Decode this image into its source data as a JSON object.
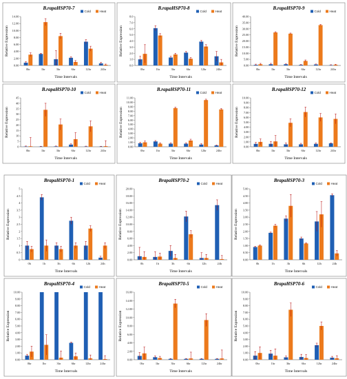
{
  "figure": {
    "colors": {
      "cold": "#1f5fb4",
      "heat": "#ec7a1c",
      "error": "#b30000"
    }
  },
  "chart_data": [
    {
      "type": "bar",
      "title": "B.rapaHSP70-7",
      "categories": [
        "0hr",
        "1hr",
        "3hr",
        "6hr",
        "12hr",
        "24hr"
      ],
      "series": [
        {
          "name": "Cold",
          "values": [
            0.8,
            3.3,
            1.8,
            2.2,
            6.8,
            0.6
          ]
        },
        {
          "name": "Heat",
          "values": [
            3.1,
            12.4,
            8.4,
            1.0,
            4.8,
            0.2
          ]
        }
      ],
      "ylim": [
        0,
        14
      ],
      "yticks": [
        "0.00",
        "2.00",
        "4.00",
        "6.00",
        "8.00",
        "10.00",
        "12.00",
        "14.00"
      ],
      "xlabel": "Time Intervals",
      "ylabel": "Relative Expression",
      "legend": "top-right",
      "grid": false
    },
    {
      "type": "bar",
      "title": "B.rapaHSP70-8",
      "categories": [
        "0hr",
        "1hr",
        "3hr",
        "6hr",
        "12hr",
        "24hr"
      ],
      "series": [
        {
          "name": "Cold",
          "values": [
            1.0,
            6.1,
            1.3,
            2.1,
            3.9,
            1.5
          ]
        },
        {
          "name": "Heat",
          "values": [
            1.9,
            4.9,
            1.8,
            1.1,
            3.1,
            0.5
          ]
        }
      ],
      "ylim": [
        0,
        8
      ],
      "yticks": [
        "0.0",
        "1.0",
        "2.0",
        "3.0",
        "4.0",
        "5.0",
        "6.0",
        "7.0",
        "8.0"
      ],
      "xlabel": "Time Intervals",
      "ylabel": "Relative Expression",
      "legend": "top-right",
      "grid": false
    },
    {
      "type": "bar",
      "title": "B.rapaHSP70-9",
      "categories": [
        "0hr",
        "1hr",
        "3hr",
        "6hr",
        "12hr",
        "24hr"
      ],
      "series": [
        {
          "name": "Cold",
          "values": [
            0.5,
            1.0,
            1.0,
            0.5,
            0.8,
            0.3
          ]
        },
        {
          "name": "Heat",
          "values": [
            1.0,
            27.0,
            26.0,
            3.7,
            33.0,
            0.6
          ]
        }
      ],
      "ylim": [
        0,
        40
      ],
      "yticks": [
        "0.00",
        "5.00",
        "10.00",
        "15.00",
        "20.00",
        "25.00",
        "30.00",
        "35.00",
        "40.00"
      ],
      "xlabel": "Time Intervals",
      "ylabel": "Relative Expression",
      "legend": "top-right",
      "grid": false
    },
    {
      "type": "bar",
      "title": "B.rapaHSP70-10",
      "categories": [
        "0hr",
        "1hr",
        "3hr",
        "6hr",
        "12hr",
        "24hr"
      ],
      "series": [
        {
          "name": "Cold",
          "values": [
            0.3,
            0.2,
            0.4,
            2.0,
            0.3,
            0.2
          ]
        },
        {
          "name": "Heat",
          "values": [
            0.5,
            34.0,
            20.5,
            7.0,
            18.8,
            0.6
          ]
        }
      ],
      "ylim": [
        0,
        45
      ],
      "yticks": [
        "0",
        "5",
        "10",
        "15",
        "20",
        "25",
        "30",
        "35",
        "40",
        "45"
      ],
      "xlabel": "Time Intervals",
      "ylabel": "Relative Expression",
      "legend": "top-right",
      "grid": false
    },
    {
      "type": "bar",
      "title": "B.rapaHSP70-11",
      "categories": [
        "0hr",
        "1hr",
        "3hr",
        "6hr",
        "12hr",
        "24hr"
      ],
      "series": [
        {
          "name": "Cold",
          "values": [
            0.8,
            1.2,
            0.7,
            0.7,
            0.5,
            0.3
          ]
        },
        {
          "name": "Heat",
          "values": [
            1.0,
            0.7,
            8.7,
            1.4,
            10.5,
            8.4
          ]
        }
      ],
      "ylim": [
        0,
        11
      ],
      "yticks": [
        "0.00",
        "1.00",
        "2.00",
        "3.00",
        "4.00",
        "5.00",
        "6.00",
        "7.00",
        "8.00",
        "9.00",
        "10.00",
        "11.00"
      ],
      "xlabel": "Time Intervals",
      "ylabel": "Relative Expression",
      "legend": "top-right",
      "grid": false
    },
    {
      "type": "bar",
      "title": "B.rapaHSP70-12",
      "categories": [
        "0hr",
        "1hr",
        "3hr",
        "6hr",
        "12hr",
        "24hr"
      ],
      "series": [
        {
          "name": "Cold",
          "values": [
            0.6,
            0.6,
            0.5,
            0.5,
            0.6,
            0.7
          ]
        },
        {
          "name": "Heat",
          "values": [
            1.0,
            1.1,
            4.9,
            7.1,
            6.0,
            5.7
          ]
        }
      ],
      "ylim": [
        0,
        10
      ],
      "yticks": [
        "0.00",
        "1.00",
        "2.00",
        "3.00",
        "4.00",
        "5.00",
        "6.00",
        "7.00",
        "8.00",
        "9.00",
        "10.00"
      ],
      "xlabel": "Time Intervals",
      "ylabel": "Relative Expression",
      "legend": "top-right",
      "grid": false
    },
    {
      "type": "bar",
      "title": "BrapaHSP70-1",
      "categories": [
        "0h",
        "1h",
        "3h",
        "6h",
        "12h",
        "24h"
      ],
      "series": [
        {
          "name": "Cold",
          "values": [
            1.0,
            4.4,
            1.0,
            2.75,
            1.0,
            0.15
          ]
        },
        {
          "name": "Heat",
          "values": [
            0.75,
            1.0,
            0.75,
            1.0,
            2.2,
            1.0
          ]
        }
      ],
      "ylim": [
        0,
        5
      ],
      "yticks": [
        "0",
        "0.5",
        "1",
        "1.5",
        "2",
        "2.5",
        "3",
        "3.5",
        "4",
        "4.5",
        "5"
      ],
      "xlabel": "Time Intervals",
      "ylabel": "Relative Expression",
      "legend": "top-right",
      "grid": false
    },
    {
      "type": "bar",
      "title": "BrapaHSP70-2",
      "categories": [
        "0h",
        "1h",
        "3h",
        "6h",
        "12h",
        "24h"
      ],
      "series": [
        {
          "name": "Cold",
          "values": [
            1.0,
            0.8,
            2.5,
            12.2,
            0.5,
            15.4
          ]
        },
        {
          "name": "Heat",
          "values": [
            0.8,
            0.9,
            0.5,
            7.2,
            0.5,
            0.2
          ]
        }
      ],
      "ylim": [
        0,
        20
      ],
      "yticks": [
        "0.00",
        "2.00",
        "4.00",
        "6.00",
        "8.00",
        "10.00",
        "12.00",
        "14.00",
        "16.00",
        "18.00",
        "20.00"
      ],
      "xlabel": "Time Intervals",
      "ylabel": "Relative Expression",
      "legend": "top-right",
      "grid": false
    },
    {
      "type": "bar",
      "title": "BrapaHSP70-3",
      "categories": [
        "0h",
        "1h",
        "3h",
        "6h",
        "12h",
        "24h"
      ],
      "series": [
        {
          "name": "Cold",
          "values": [
            0.9,
            1.9,
            2.9,
            1.5,
            2.7,
            4.55
          ]
        },
        {
          "name": "Heat",
          "values": [
            1.0,
            2.4,
            3.8,
            1.15,
            3.2,
            0.45
          ]
        }
      ],
      "ylim": [
        0,
        5
      ],
      "yticks": [
        "0.00",
        "0.50",
        "1.00",
        "1.50",
        "2.00",
        "2.50",
        "3.00",
        "3.50",
        "4.00",
        "4.50",
        "5.00"
      ],
      "xlabel": "Time Intervals",
      "ylabel": "Relative Expression",
      "legend": "top-right",
      "grid": false
    },
    {
      "type": "bar",
      "title": "BrapaHSP70-4",
      "categories": [
        "0hr",
        "1hr",
        "3hr",
        "6hr",
        "12hr",
        "24hr"
      ],
      "series": [
        {
          "name": "Cold",
          "values": [
            0.6,
            10.0,
            10.0,
            2.5,
            10.0,
            10.0
          ]
        },
        {
          "name": "Heat",
          "values": [
            1.2,
            2.2,
            0.3,
            0.5,
            0.2,
            0.1
          ]
        }
      ],
      "ylim": [
        0,
        10
      ],
      "yticks": [
        "0.00",
        "1.00",
        "2.00",
        "3.00",
        "4.00",
        "5.00",
        "6.00",
        "7.00",
        "8.00",
        "9.00",
        "10.00"
      ],
      "xlabel": "Time Intervals",
      "ylabel": "Relative Expression",
      "legend": "top-right",
      "grid": false
    },
    {
      "type": "bar",
      "title": "BrapaHSP70-5",
      "categories": [
        "0hr",
        "1hr",
        "3hr",
        "6hr",
        "12hr",
        "24hr"
      ],
      "series": [
        {
          "name": "Cold",
          "values": [
            0.9,
            0.6,
            0.2,
            0.2,
            0.2,
            0.2
          ]
        },
        {
          "name": "Heat",
          "values": [
            1.5,
            0.4,
            13.3,
            0.3,
            9.4,
            0.3
          ]
        }
      ],
      "ylim": [
        0,
        16
      ],
      "yticks": [
        "0.00",
        "2.00",
        "4.00",
        "6.00",
        "8.00",
        "10.00",
        "12.00",
        "14.00",
        "16.00"
      ],
      "xlabel": "Time Intervals",
      "ylabel": "Relative Expression",
      "legend": "top-right",
      "grid": false
    },
    {
      "type": "bar",
      "title": "BrapaHSP70-6",
      "categories": [
        "0hr",
        "1hr",
        "3hr",
        "6hr",
        "12hr",
        "24hr"
      ],
      "series": [
        {
          "name": "Cold",
          "values": [
            0.6,
            0.9,
            0.35,
            0.4,
            2.15,
            0.3
          ]
        },
        {
          "name": "Heat",
          "values": [
            1.0,
            0.6,
            7.4,
            0.25,
            5.0,
            0.2
          ]
        }
      ],
      "ylim": [
        0,
        10
      ],
      "yticks": [
        "0.00",
        "1.00",
        "2.00",
        "3.00",
        "4.00",
        "5.00",
        "6.00",
        "7.00",
        "8.00",
        "9.00",
        "10.00"
      ],
      "xlabel": "Time Intervals",
      "ylabel": "Relative Expression",
      "legend": "top-right",
      "grid": false
    }
  ]
}
